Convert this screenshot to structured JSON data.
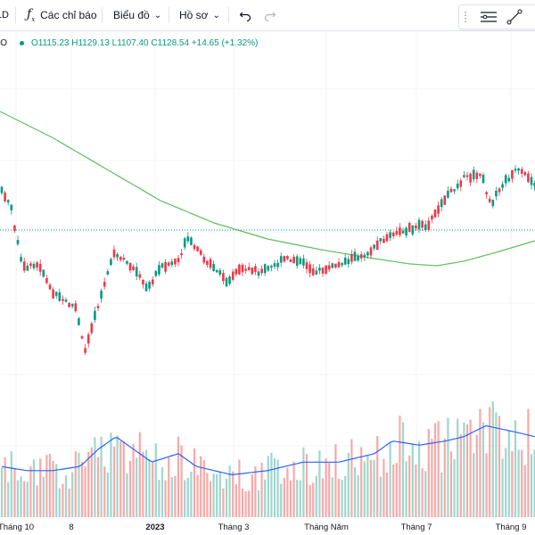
{
  "toolbar": {
    "interval_partial": "1D",
    "indicators_label": "Các chỉ báo",
    "chart_type_label": "Biểu đồ",
    "profile_label": "Hồ sơ"
  },
  "legend": {
    "symbol_partial": "O",
    "open": "O1115.23",
    "high": "H1129.13",
    "low": "L1107.40",
    "close": "C1128.54",
    "change": "+14.65 (+1.32%)"
  },
  "x_axis_labels": [
    {
      "text": "Tháng 10",
      "bold": false
    },
    {
      "text": "8",
      "bold": false
    },
    {
      "text": "2023",
      "bold": true
    },
    {
      "text": "Tháng 3",
      "bold": false
    },
    {
      "text": "Tháng Năm",
      "bold": false
    },
    {
      "text": "Tháng 7",
      "bold": false
    },
    {
      "text": "Tháng 9",
      "bold": false
    }
  ],
  "colors": {
    "up": "#089981",
    "down": "#f23645",
    "vol_up": "#9fd6cd",
    "vol_down": "#f7a9a7",
    "ma": "#5fbf5f",
    "vol_ma": "#2962ff"
  },
  "chart_data": {
    "type": "candlestick",
    "price_anchor_points": [
      [
        0,
        212
      ],
      [
        12,
        230
      ],
      [
        25,
        300
      ],
      [
        45,
        298
      ],
      [
        60,
        330
      ],
      [
        85,
        345
      ],
      [
        95,
        395
      ],
      [
        105,
        358
      ],
      [
        120,
        310
      ],
      [
        128,
        285
      ],
      [
        150,
        300
      ],
      [
        165,
        325
      ],
      [
        180,
        300
      ],
      [
        200,
        292
      ],
      [
        210,
        268
      ],
      [
        225,
        285
      ],
      [
        240,
        302
      ],
      [
        255,
        315
      ],
      [
        270,
        300
      ],
      [
        290,
        305
      ],
      [
        305,
        300
      ],
      [
        320,
        290
      ],
      [
        340,
        295
      ],
      [
        355,
        305
      ],
      [
        370,
        300
      ],
      [
        390,
        292
      ],
      [
        410,
        285
      ],
      [
        430,
        268
      ],
      [
        460,
        256
      ],
      [
        480,
        252
      ],
      [
        500,
        222
      ],
      [
        520,
        200
      ],
      [
        540,
        196
      ],
      [
        550,
        230
      ],
      [
        565,
        205
      ],
      [
        580,
        190
      ],
      [
        600,
        205
      ]
    ],
    "ma_anchor_points": [
      [
        0,
        125
      ],
      [
        60,
        155
      ],
      [
        120,
        190
      ],
      [
        180,
        225
      ],
      [
        240,
        250
      ],
      [
        300,
        268
      ],
      [
        360,
        280
      ],
      [
        420,
        290
      ],
      [
        460,
        296
      ],
      [
        490,
        298
      ],
      [
        520,
        293
      ],
      [
        560,
        282
      ],
      [
        600,
        270
      ]
    ],
    "volume_anchor_points": [
      [
        0,
        60
      ],
      [
        30,
        55
      ],
      [
        60,
        55
      ],
      [
        90,
        60
      ],
      [
        110,
        80
      ],
      [
        130,
        95
      ],
      [
        150,
        80
      ],
      [
        170,
        65
      ],
      [
        200,
        75
      ],
      [
        220,
        60
      ],
      [
        260,
        50
      ],
      [
        300,
        55
      ],
      [
        340,
        65
      ],
      [
        380,
        65
      ],
      [
        420,
        75
      ],
      [
        440,
        90
      ],
      [
        470,
        85
      ],
      [
        500,
        90
      ],
      [
        520,
        95
      ],
      [
        545,
        108
      ],
      [
        580,
        100
      ],
      [
        600,
        95
      ]
    ],
    "horizontal_price_line_y": 258
  }
}
